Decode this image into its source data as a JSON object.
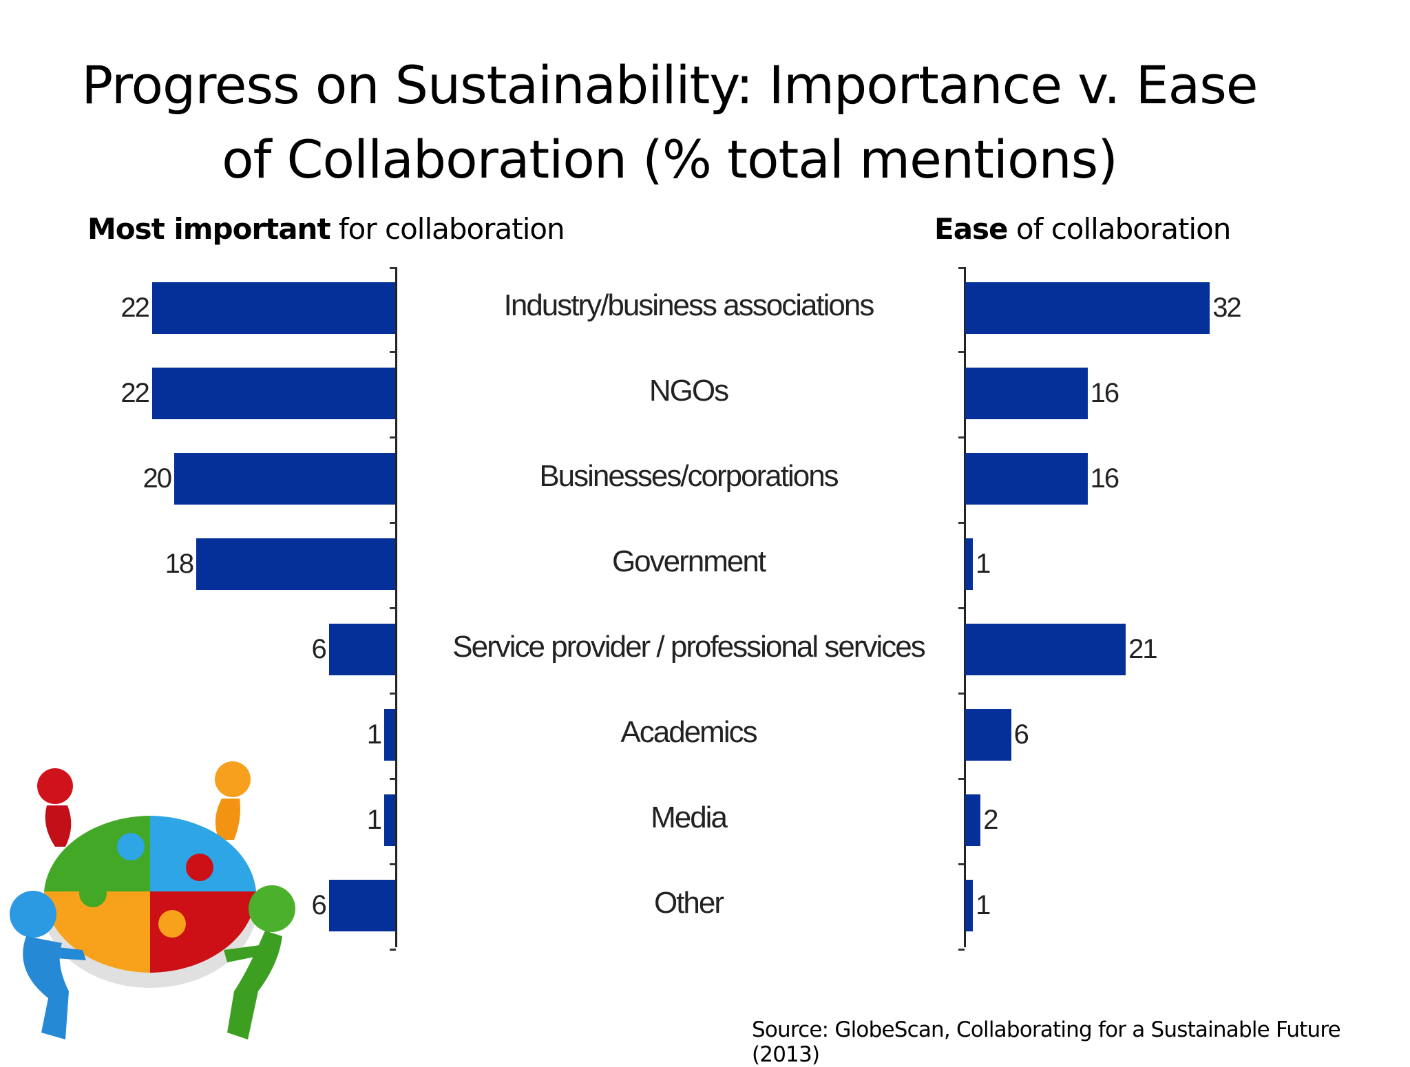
{
  "title": {
    "line1": "Progress on Sustainability: Importance v. Ease",
    "line2": "of Collaboration (% total mentions)"
  },
  "subtitles": {
    "left_bold": "Most important",
    "left_rest": " for collaboration",
    "right_bold": "Ease",
    "right_rest": " of collaboration"
  },
  "source": "Source: GlobeScan, Collaborating for a Sustainable Future (2013)",
  "colors": {
    "bar": "#05309a",
    "text": "#222222"
  },
  "illustration": {
    "icon": "team-puzzle-icon"
  },
  "chart_data": [
    {
      "type": "bar",
      "orientation": "horizontal",
      "direction": "right-to-left",
      "title": "Most important for collaboration",
      "categories": [
        "Industry/business associations",
        "NGOs",
        "Businesses/corporations",
        "Government",
        "Service provider / professional services",
        "Academics",
        "Media",
        "Other"
      ],
      "values": [
        22,
        22,
        20,
        18,
        6,
        1,
        1,
        6
      ],
      "xlabel": "",
      "ylabel": "% total mentions",
      "data_labels": true,
      "grid": false,
      "legend": null
    },
    {
      "type": "bar",
      "orientation": "horizontal",
      "direction": "left-to-right",
      "title": "Ease of collaboration",
      "categories": [
        "Industry/business associations",
        "NGOs",
        "Businesses/corporations",
        "Government",
        "Service provider / professional services",
        "Academics",
        "Media",
        "Other"
      ],
      "values": [
        32,
        16,
        16,
        1,
        21,
        6,
        2,
        1
      ],
      "xlabel": "",
      "ylabel": "% total mentions",
      "data_labels": true,
      "grid": false,
      "legend": null
    }
  ]
}
